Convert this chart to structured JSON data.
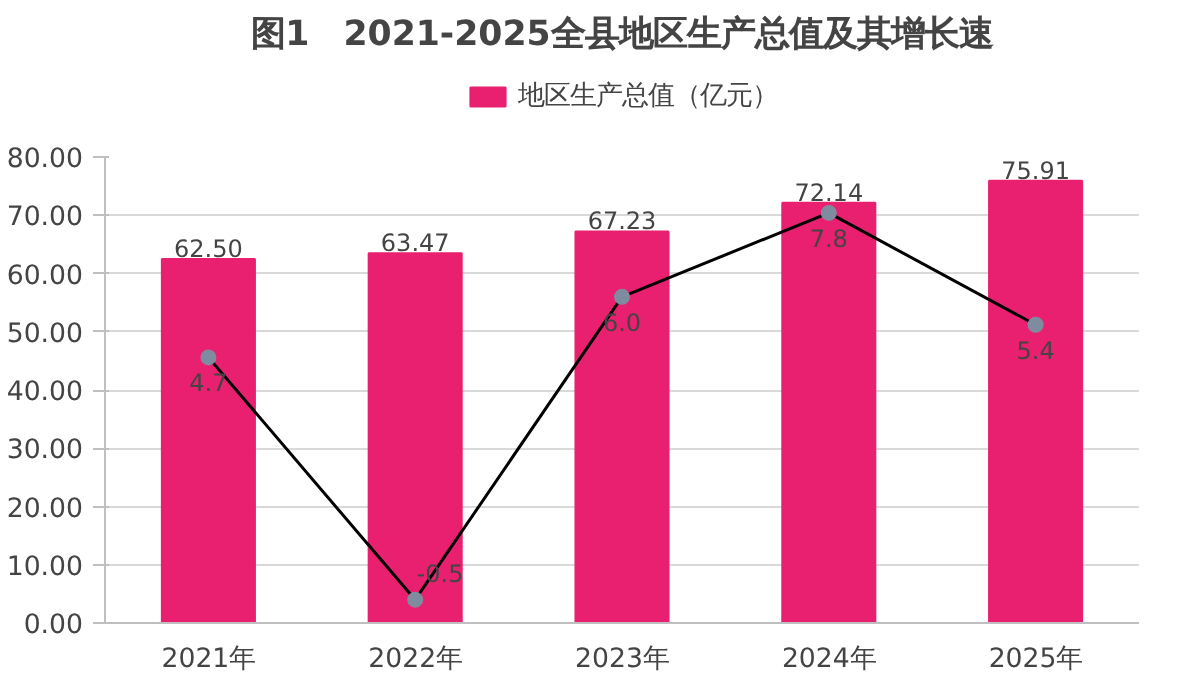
{
  "chart_data": {
    "type": "bar",
    "title": "图1　2021-2025全县地区生产总值及其增长速",
    "categories": [
      "2021年",
      "2022年",
      "2023年",
      "2024年",
      "2025年"
    ],
    "series": [
      {
        "name": "地区生产总值（亿元）",
        "color": "#e9206f",
        "values": [
          62.5,
          63.47,
          67.23,
          72.14,
          75.91
        ],
        "value_labels": [
          "62.50",
          "63.47",
          "67.23",
          "72.14",
          "75.91"
        ]
      },
      {
        "type": "line",
        "axis": "y2",
        "color": "#000000",
        "values": [
          4.7,
          -0.5,
          6.0,
          7.8,
          5.4
        ],
        "value_labels": [
          "4.7",
          "-0.5",
          "6.0",
          "7.8",
          "5.4"
        ]
      }
    ],
    "ylim": [
      0,
      80
    ],
    "yticks": [
      {
        "value": 0,
        "label": "0.00"
      },
      {
        "value": 10,
        "label": "10.00"
      },
      {
        "value": 20,
        "label": "20.00"
      },
      {
        "value": 30,
        "label": "30.00"
      },
      {
        "value": 40,
        "label": "40.00"
      },
      {
        "value": 50,
        "label": "50.00"
      },
      {
        "value": 60,
        "label": "60.00"
      },
      {
        "value": 70,
        "label": "70.00"
      },
      {
        "value": 80,
        "label": "80.00"
      }
    ],
    "y2lim": [
      -1,
      9
    ],
    "grid": "y",
    "legend": "top",
    "marker": "circle",
    "line_style": "solid"
  }
}
